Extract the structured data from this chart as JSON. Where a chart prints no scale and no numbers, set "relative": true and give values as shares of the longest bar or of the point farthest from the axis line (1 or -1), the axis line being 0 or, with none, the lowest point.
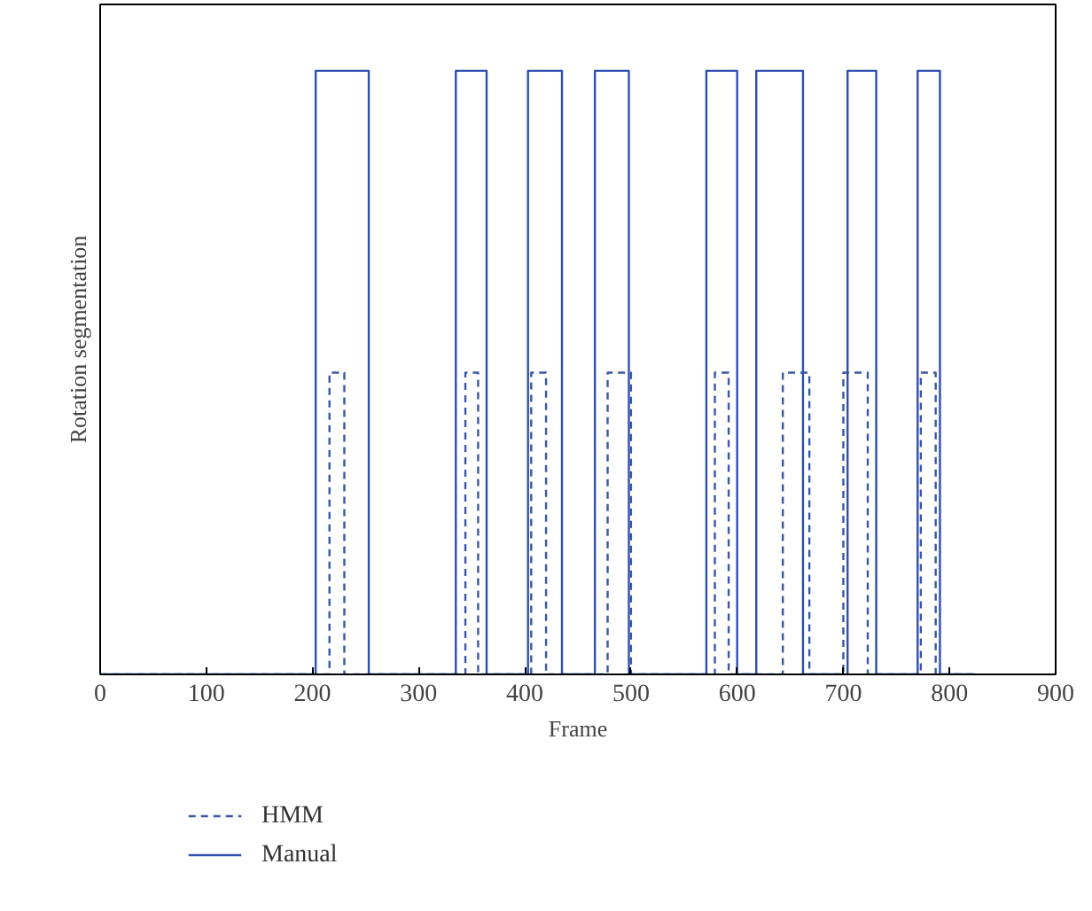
{
  "chart_data": {
    "type": "line",
    "relative": true,
    "xlabel": "Frame",
    "ylabel": "Rotation segmentation",
    "xlim": [
      0,
      900
    ],
    "xticks": [
      0,
      100,
      200,
      300,
      400,
      500,
      600,
      700,
      800,
      900
    ],
    "legend": "bottom",
    "grid": false,
    "series": [
      {
        "name": "HMM",
        "color": "#3a56a8",
        "line_style": "dashed",
        "x": [
          0,
          216,
          216,
          230,
          230,
          344,
          344,
          356,
          356,
          406,
          406,
          420,
          420,
          478,
          478,
          500,
          500,
          579,
          579,
          592,
          592,
          643,
          643,
          668,
          668,
          700,
          700,
          723,
          723,
          773,
          773,
          787,
          787,
          823
        ],
        "values": [
          0,
          0,
          0.5,
          0.5,
          0,
          0,
          0.5,
          0.5,
          0,
          0,
          0.5,
          0.5,
          0,
          0,
          0.5,
          0.5,
          0,
          0,
          0.5,
          0.5,
          0,
          0,
          0.5,
          0.5,
          0,
          0,
          0.5,
          0.5,
          0,
          0,
          0.5,
          0.5,
          0,
          0
        ]
      },
      {
        "name": "Manual",
        "color": "#2f4fb0",
        "line_style": "solid",
        "x": [
          0,
          203,
          203,
          253,
          253,
          335,
          335,
          364,
          364,
          403,
          403,
          435,
          435,
          466,
          466,
          498,
          498,
          571,
          571,
          600,
          600,
          618,
          618,
          662,
          662,
          704,
          704,
          731,
          731,
          770,
          770,
          791,
          791,
          823
        ],
        "values": [
          0,
          0,
          1,
          1,
          0,
          0,
          1,
          1,
          0,
          0,
          1,
          1,
          0,
          0,
          1,
          1,
          0,
          0,
          1,
          1,
          0,
          0,
          1,
          1,
          0,
          0,
          1,
          1,
          0,
          0,
          1,
          1,
          0,
          0
        ]
      }
    ]
  }
}
